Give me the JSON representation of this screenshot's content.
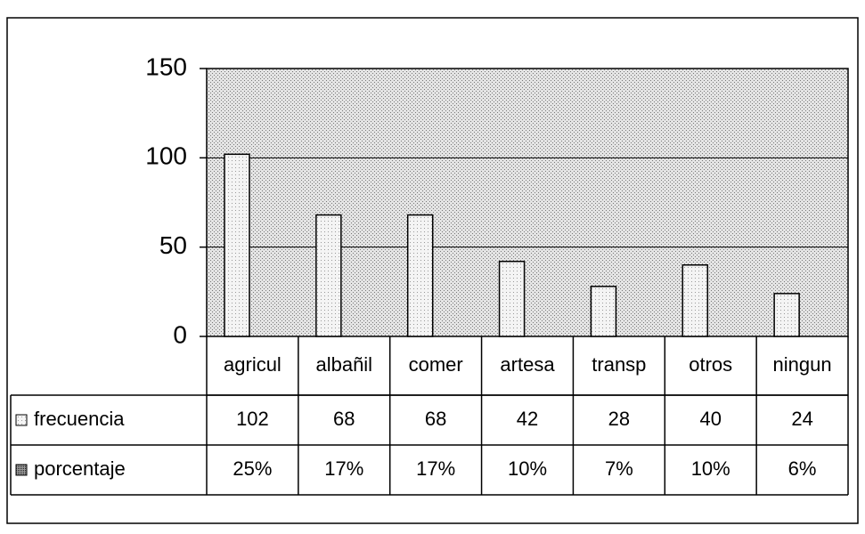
{
  "chart_data": {
    "type": "bar",
    "categories": [
      "agricul",
      "albañil",
      "comer",
      "artesa",
      "transp",
      "otros",
      "ningun"
    ],
    "series": [
      {
        "name": "frecuencia",
        "color": "#d8d8d8",
        "values": [
          102,
          68,
          68,
          42,
          28,
          40,
          24
        ]
      },
      {
        "name": "porcentaje",
        "color": "#555555",
        "values": [
          25,
          17,
          17,
          10,
          7,
          10,
          6
        ],
        "value_labels": [
          "25%",
          "17%",
          "17%",
          "10%",
          "7%",
          "10%",
          "6%"
        ]
      }
    ],
    "ylim": [
      0,
      150
    ],
    "yticks": [
      0,
      50,
      100,
      150
    ],
    "grid": true
  }
}
